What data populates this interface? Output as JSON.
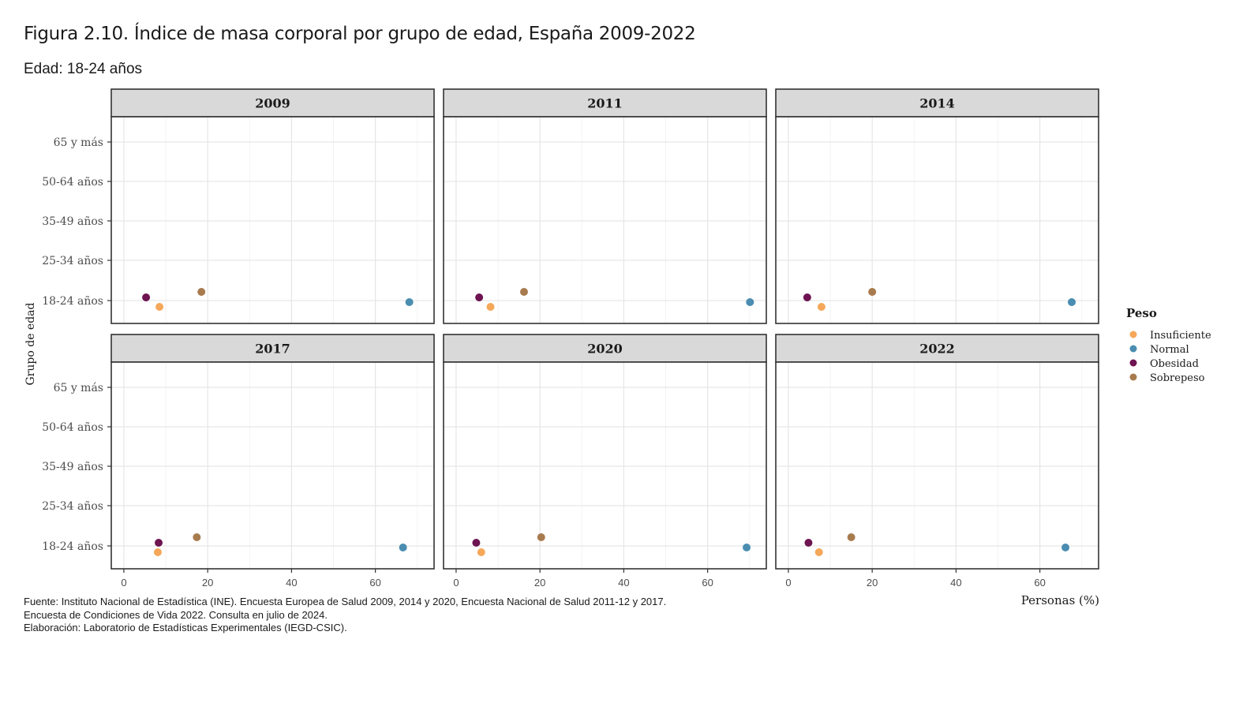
{
  "title": "Figura 2.10. Índice de masa corporal por grupo de edad, España 2009-2022",
  "subtitle": "Edad: 18-24 años",
  "caption": [
    "Fuente: Instituto Nacional de Estadística (INE). Encuesta Europea de Salud 2009, 2014 y 2020, Encuesta Nacional de Salud 2011-12 y 2017.",
    "Encuesta de Condiciones de Vida 2022. Consulta en julio de 2024.",
    "Elaboración: Laboratorio de Estadísticas Experimentales (IEGD-CSIC)."
  ],
  "colors": {
    "Insuficiente": "#F5A85A",
    "Normal": "#4A8DB0",
    "Obesidad": "#6E1451",
    "Sobrepeso": "#A87B4F"
  },
  "chart_data": {
    "type": "scatter",
    "xlabel": "Personas (%)",
    "ylabel": "Grupo de edad",
    "xlim": [
      -3,
      74
    ],
    "x_ticks": [
      0,
      20,
      40,
      60
    ],
    "y_categories": [
      "65 y más",
      "50-64 años",
      "35-49 años",
      "25-34 años",
      "18-24 años"
    ],
    "grid": true,
    "legend": {
      "title": "Peso",
      "position": "right",
      "entries": [
        "Insuficiente",
        "Normal",
        "Obesidad",
        "Sobrepeso"
      ]
    },
    "panels": [
      {
        "label": "2009",
        "points": [
          {
            "series": "Obesidad",
            "x": 5.3,
            "y": "18-24 años"
          },
          {
            "series": "Insuficiente",
            "x": 8.5,
            "y": "18-24 años"
          },
          {
            "series": "Sobrepeso",
            "x": 18.5,
            "y": "18-24 años"
          },
          {
            "series": "Normal",
            "x": 68.1,
            "y": "18-24 años"
          }
        ]
      },
      {
        "label": "2011",
        "points": [
          {
            "series": "Obesidad",
            "x": 5.5,
            "y": "18-24 años"
          },
          {
            "series": "Insuficiente",
            "x": 8.2,
            "y": "18-24 años"
          },
          {
            "series": "Sobrepeso",
            "x": 16.2,
            "y": "18-24 años"
          },
          {
            "series": "Normal",
            "x": 70.1,
            "y": "18-24 años"
          }
        ]
      },
      {
        "label": "2014",
        "points": [
          {
            "series": "Obesidad",
            "x": 4.5,
            "y": "18-24 años"
          },
          {
            "series": "Insuficiente",
            "x": 7.9,
            "y": "18-24 años"
          },
          {
            "series": "Sobrepeso",
            "x": 20.0,
            "y": "18-24 años"
          },
          {
            "series": "Normal",
            "x": 67.6,
            "y": "18-24 años"
          }
        ]
      },
      {
        "label": "2017",
        "points": [
          {
            "series": "Obesidad",
            "x": 8.3,
            "y": "18-24 años"
          },
          {
            "series": "Insuficiente",
            "x": 8.1,
            "y": "18-24 años"
          },
          {
            "series": "Sobrepeso",
            "x": 17.4,
            "y": "18-24 años"
          },
          {
            "series": "Normal",
            "x": 66.6,
            "y": "18-24 años"
          }
        ]
      },
      {
        "label": "2020",
        "points": [
          {
            "series": "Obesidad",
            "x": 4.8,
            "y": "18-24 años"
          },
          {
            "series": "Insuficiente",
            "x": 6.0,
            "y": "18-24 años"
          },
          {
            "series": "Sobrepeso",
            "x": 20.3,
            "y": "18-24 años"
          },
          {
            "series": "Normal",
            "x": 69.3,
            "y": "18-24 años"
          }
        ]
      },
      {
        "label": "2022",
        "points": [
          {
            "series": "Obesidad",
            "x": 4.8,
            "y": "18-24 años"
          },
          {
            "series": "Insuficiente",
            "x": 7.3,
            "y": "18-24 años"
          },
          {
            "series": "Sobrepeso",
            "x": 15.0,
            "y": "18-24 años"
          },
          {
            "series": "Normal",
            "x": 66.1,
            "y": "18-24 años"
          }
        ]
      }
    ]
  }
}
